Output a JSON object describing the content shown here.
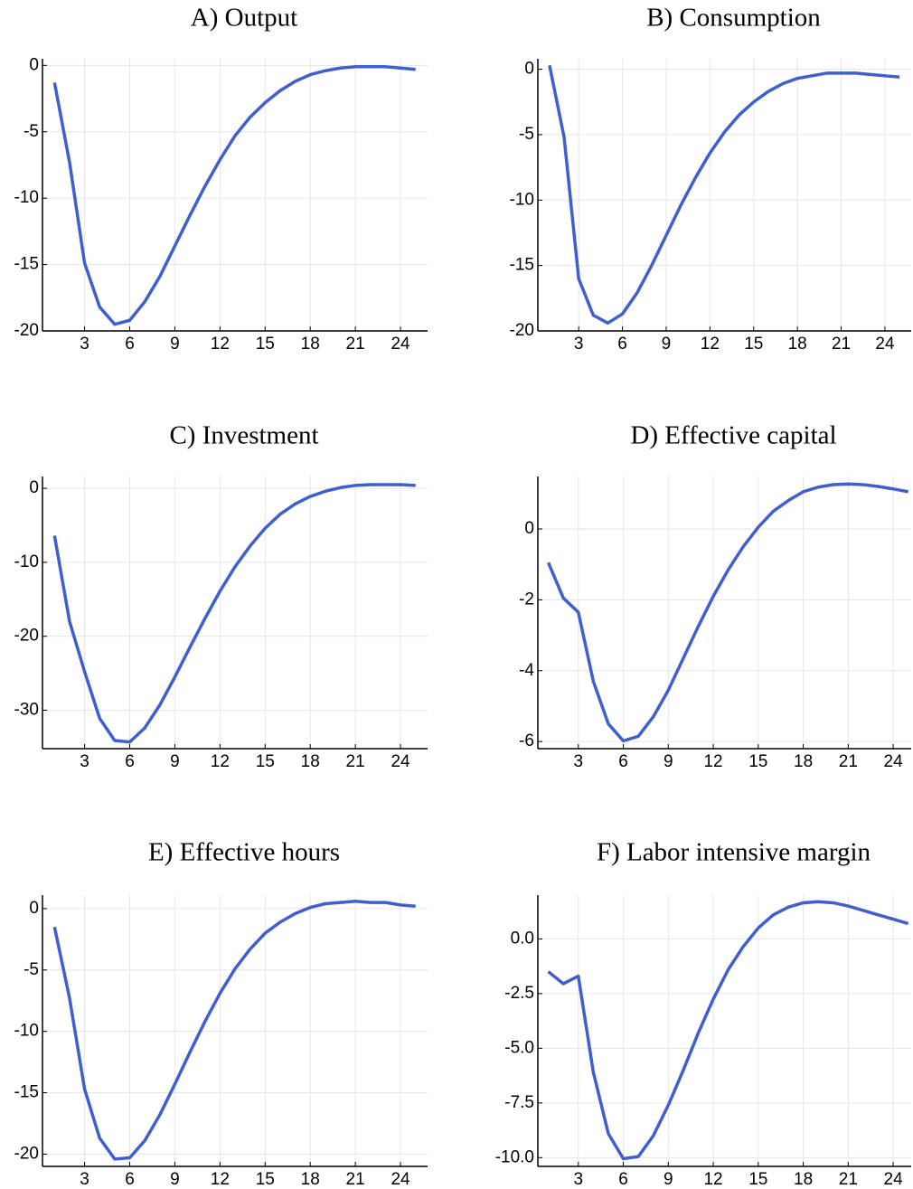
{
  "chart_data": [
    {
      "type": "line",
      "title": "A) Output",
      "grid": true,
      "x": [
        1,
        2,
        3,
        4,
        5,
        6,
        7,
        8,
        9,
        10,
        11,
        12,
        13,
        14,
        15,
        16,
        17,
        18,
        19,
        20,
        21,
        22,
        23,
        24,
        25
      ],
      "xlim": [
        0.2,
        25.8
      ],
      "xticks": [
        3,
        6,
        9,
        12,
        15,
        18,
        21,
        24
      ],
      "ylim": [
        -20,
        0.5
      ],
      "yticks": [
        0,
        -5,
        -10,
        -15,
        -20
      ],
      "series": [
        {
          "color": "#3f5fcf",
          "values": [
            -1.3,
            -7.3,
            -14.9,
            -18.2,
            -19.5,
            -19.2,
            -17.8,
            -15.9,
            -13.6,
            -11.3,
            -9.1,
            -7.1,
            -5.3,
            -3.9,
            -2.8,
            -1.9,
            -1.2,
            -0.7,
            -0.4,
            -0.2,
            -0.1,
            -0.1,
            -0.1,
            -0.2,
            -0.3
          ]
        }
      ]
    },
    {
      "type": "line",
      "title": "B) Consumption",
      "grid": true,
      "x": [
        1,
        2,
        3,
        4,
        5,
        6,
        7,
        8,
        9,
        10,
        11,
        12,
        13,
        14,
        15,
        16,
        17,
        18,
        19,
        20,
        21,
        22,
        23,
        24,
        25
      ],
      "xlim": [
        0.2,
        25.8
      ],
      "xticks": [
        3,
        6,
        9,
        12,
        15,
        18,
        21,
        24
      ],
      "ylim": [
        -20,
        0.8
      ],
      "yticks": [
        0,
        -5,
        -10,
        -15,
        -20
      ],
      "series": [
        {
          "color": "#3f5fcf",
          "values": [
            0.3,
            -5.2,
            -16,
            -18.8,
            -19.4,
            -18.7,
            -17.1,
            -15,
            -12.7,
            -10.4,
            -8.3,
            -6.4,
            -4.8,
            -3.5,
            -2.5,
            -1.7,
            -1.1,
            -0.7,
            -0.5,
            -0.3,
            -0.3,
            -0.3,
            -0.4,
            -0.5,
            -0.6
          ]
        }
      ]
    },
    {
      "type": "line",
      "title": "C) Investment",
      "grid": true,
      "x": [
        1,
        2,
        3,
        4,
        5,
        6,
        7,
        8,
        9,
        10,
        11,
        12,
        13,
        14,
        15,
        16,
        17,
        18,
        19,
        20,
        21,
        22,
        23,
        24,
        25
      ],
      "xlim": [
        0.2,
        25.8
      ],
      "xticks": [
        3,
        6,
        9,
        12,
        15,
        18,
        21,
        24
      ],
      "ylim": [
        -35.2,
        1.6
      ],
      "yticks": [
        0,
        -10,
        -20,
        -30
      ],
      "series": [
        {
          "color": "#3f5fcf",
          "values": [
            -6.4,
            -18,
            -24.8,
            -31.1,
            -34.1,
            -34.3,
            -32.4,
            -29.3,
            -25.5,
            -21.5,
            -17.6,
            -13.9,
            -10.6,
            -7.8,
            -5.4,
            -3.5,
            -2.1,
            -1.1,
            -0.4,
            0.1,
            0.4,
            0.5,
            0.5,
            0.5,
            0.4
          ]
        }
      ]
    },
    {
      "type": "line",
      "title": "D) Effective capital",
      "grid": true,
      "x": [
        1,
        2,
        3,
        4,
        5,
        6,
        7,
        8,
        9,
        10,
        11,
        12,
        13,
        14,
        15,
        16,
        17,
        18,
        19,
        20,
        21,
        22,
        23,
        24,
        25
      ],
      "xlim": [
        0.3,
        25.2
      ],
      "xticks": [
        3,
        6,
        9,
        12,
        15,
        18,
        21,
        24
      ],
      "ylim": [
        -6.2,
        1.48
      ],
      "yticks": [
        0,
        -2,
        -4,
        -6
      ],
      "series": [
        {
          "color": "#3f5fcf",
          "values": [
            -0.95,
            -1.95,
            -2.35,
            -4.3,
            -5.5,
            -5.98,
            -5.85,
            -5.3,
            -4.55,
            -3.65,
            -2.75,
            -1.9,
            -1.15,
            -0.5,
            0.05,
            0.5,
            0.8,
            1.05,
            1.18,
            1.25,
            1.27,
            1.25,
            1.2,
            1.13,
            1.05
          ]
        }
      ]
    },
    {
      "type": "line",
      "title": "E) Effective hours",
      "grid": true,
      "x": [
        1,
        2,
        3,
        4,
        5,
        6,
        7,
        8,
        9,
        10,
        11,
        12,
        13,
        14,
        15,
        16,
        17,
        18,
        19,
        20,
        21,
        22,
        23,
        24,
        25
      ],
      "xlim": [
        0.2,
        25.8
      ],
      "xticks": [
        3,
        6,
        9,
        12,
        15,
        18,
        21,
        24
      ],
      "ylim": [
        -21,
        1.1
      ],
      "yticks": [
        0,
        -5,
        -10,
        -15,
        -20
      ],
      "series": [
        {
          "color": "#3f5fcf",
          "values": [
            -1.5,
            -7.3,
            -14.7,
            -18.7,
            -20.4,
            -20.3,
            -18.9,
            -16.8,
            -14.3,
            -11.7,
            -9.2,
            -6.9,
            -4.9,
            -3.3,
            -2,
            -1.1,
            -0.4,
            0.1,
            0.4,
            0.5,
            0.6,
            0.5,
            0.5,
            0.3,
            0.2
          ]
        }
      ]
    },
    {
      "type": "line",
      "title": "F) Labor intensive margin",
      "grid": true,
      "x": [
        1,
        2,
        3,
        4,
        5,
        6,
        7,
        8,
        9,
        10,
        11,
        12,
        13,
        14,
        15,
        16,
        17,
        18,
        19,
        20,
        21,
        22,
        23,
        24,
        25
      ],
      "xlim": [
        0.3,
        25.2
      ],
      "xticks": [
        3,
        6,
        9,
        12,
        15,
        18,
        21,
        24
      ],
      "ylim": [
        -10.4,
        2.0
      ],
      "yticks": [
        {
          "value": 0,
          "label": "0.0"
        },
        {
          "value": -2.5,
          "label": "-2.5"
        },
        {
          "value": -5,
          "label": "-5.0"
        },
        {
          "value": -7.5,
          "label": "-7.5"
        },
        {
          "value": -10,
          "label": "-10.0"
        }
      ],
      "series": [
        {
          "color": "#3f5fcf",
          "values": [
            -1.5,
            -2.05,
            -1.7,
            -6.1,
            -8.9,
            -10.05,
            -9.95,
            -9.0,
            -7.6,
            -6.0,
            -4.3,
            -2.75,
            -1.4,
            -0.35,
            0.5,
            1.1,
            1.45,
            1.65,
            1.7,
            1.65,
            1.5,
            1.3,
            1.1,
            0.9,
            0.7
          ]
        }
      ]
    }
  ]
}
